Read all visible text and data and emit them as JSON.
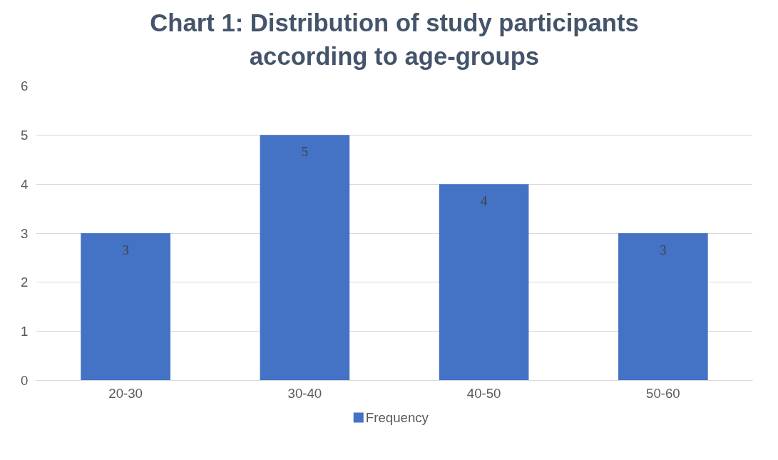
{
  "chart_data": {
    "type": "bar",
    "title": "Chart 1: Distribution of study participants\naccording to age-groups",
    "categories": [
      "20-30",
      "30-40",
      "40-50",
      "50-60"
    ],
    "series": [
      {
        "name": "Frequency",
        "color": "#4472c4",
        "values": [
          3,
          5,
          4,
          3
        ]
      }
    ],
    "ylim": [
      0,
      6
    ],
    "yticks": [
      0,
      1,
      2,
      3,
      4,
      5,
      6
    ],
    "grid": "y",
    "legend": "bottom",
    "data_labels": true
  }
}
